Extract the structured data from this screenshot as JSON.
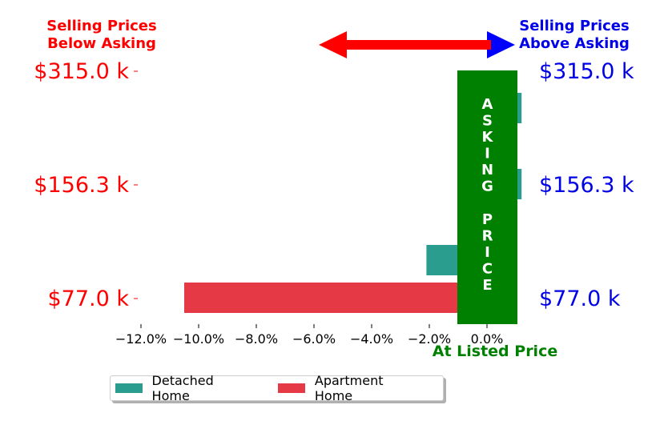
{
  "chart_data": {
    "type": "bar",
    "orientation": "horizontal",
    "y_tick_labels_left": [
      "$315.0 k",
      "$156.3 k",
      "$77.0 k"
    ],
    "y_tick_labels_right": [
      "$315.0 k",
      "$156.3 k",
      "$77.0 k"
    ],
    "x_ticks": [
      -12,
      -10,
      -8,
      -6,
      -4,
      -2,
      0
    ],
    "x_tick_labels": [
      "−12.0%",
      "−10.0%",
      "−8.0%",
      "−6.0%",
      "−4.0%",
      "−2.0%",
      "0.0%"
    ],
    "xlim": [
      -13.0,
      1.2
    ],
    "bars": [
      {
        "series": "Detached Home",
        "price": "$315.0 k",
        "value": 1.2
      },
      {
        "series": "Detached Home",
        "value": -0.6
      },
      {
        "series": "Detached Home",
        "price": "$156.3 k",
        "value": 1.2
      },
      {
        "series": "Detached Home",
        "value": -0.5
      },
      {
        "series": "Detached Home",
        "value": -2.1
      },
      {
        "series": "Apartment Home",
        "price": "$77.0 k",
        "value": -10.5
      }
    ],
    "series": [
      {
        "name": "Detached Home",
        "color": "#2a9d8f"
      },
      {
        "name": "Apartment Home",
        "color": "#e63946"
      }
    ],
    "asking_band": {
      "label_top": "ASKING",
      "label_bottom": "PRICE",
      "xrange": [
        -1.0,
        1.0
      ],
      "color": "#008000"
    },
    "annotations": {
      "below_asking": [
        "Selling Prices",
        "Below Asking"
      ],
      "above_asking": [
        "Selling Prices",
        "Above Asking"
      ],
      "at_listed": "At Listed Price"
    },
    "colors": {
      "left_axis": "#ff0000",
      "right_axis": "#0000e6",
      "arrow_left": "#ff0000",
      "arrow_right": "#0000ff"
    },
    "legend": {
      "placement": "bottom-center"
    }
  }
}
